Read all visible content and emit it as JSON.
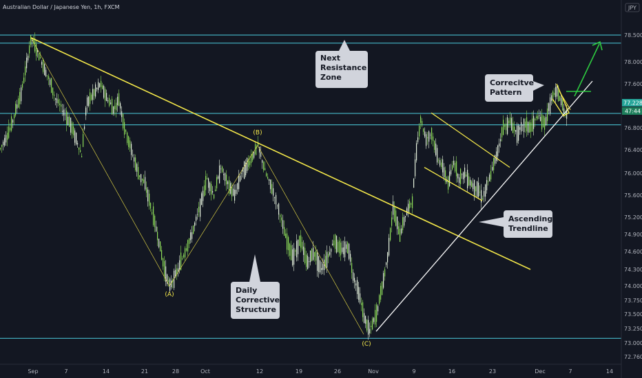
{
  "header": {
    "title": "Australian Dollar / Japanese Yen, 1h, FXCM"
  },
  "chart_data": {
    "type": "candlestick",
    "title": "Australian Dollar / Japanese Yen, 1h, FXCM",
    "currency": "JPY",
    "y_ticks": [
      "78.500",
      "78.000",
      "77.600",
      "77.200",
      "76.800",
      "76.400",
      "76.000",
      "75.600",
      "75.200",
      "74.900",
      "74.600",
      "74.300",
      "74.000",
      "73.750",
      "73.500",
      "73.250",
      "73.000",
      "72.760"
    ],
    "x_ticks": [
      "Sep",
      "7",
      "14",
      "21",
      "28",
      "Oct",
      "12",
      "19",
      "26",
      "Nov",
      "9",
      "16",
      "23",
      "Dec",
      "7",
      "14"
    ],
    "ylim": [
      72.6,
      78.8
    ],
    "last_price": "77.228",
    "countdown": "47:44",
    "price_path": [
      [
        0,
        76.42
      ],
      [
        15,
        76.8
      ],
      [
        30,
        77.4
      ],
      [
        45,
        78.45
      ],
      [
        60,
        78.0
      ],
      [
        70,
        77.7
      ],
      [
        80,
        77.3
      ],
      [
        90,
        77.1
      ],
      [
        100,
        76.9
      ],
      [
        110,
        76.6
      ],
      [
        118,
        76.3
      ],
      [
        125,
        77.2
      ],
      [
        135,
        77.4
      ],
      [
        145,
        77.6
      ],
      [
        155,
        77.3
      ],
      [
        165,
        77.1
      ],
      [
        172,
        77.3
      ],
      [
        180,
        76.8
      ],
      [
        190,
        76.4
      ],
      [
        200,
        76.0
      ],
      [
        210,
        75.8
      ],
      [
        218,
        75.4
      ],
      [
        228,
        74.9
      ],
      [
        238,
        74.3
      ],
      [
        246,
        74.0
      ],
      [
        258,
        74.3
      ],
      [
        268,
        74.6
      ],
      [
        278,
        74.9
      ],
      [
        290,
        75.4
      ],
      [
        300,
        75.9
      ],
      [
        310,
        75.6
      ],
      [
        320,
        76.1
      ],
      [
        330,
        75.8
      ],
      [
        340,
        75.6
      ],
      [
        350,
        76.0
      ],
      [
        362,
        76.2
      ],
      [
        374,
        76.48
      ],
      [
        385,
        76.0
      ],
      [
        395,
        75.7
      ],
      [
        405,
        75.3
      ],
      [
        415,
        74.8
      ],
      [
        425,
        74.5
      ],
      [
        435,
        74.8
      ],
      [
        445,
        74.4
      ],
      [
        455,
        74.6
      ],
      [
        465,
        74.3
      ],
      [
        475,
        74.5
      ],
      [
        485,
        74.8
      ],
      [
        495,
        74.6
      ],
      [
        505,
        74.7
      ],
      [
        512,
        74.2
      ],
      [
        520,
        73.9
      ],
      [
        528,
        73.45
      ],
      [
        536,
        73.2
      ],
      [
        546,
        73.5
      ],
      [
        556,
        74.1
      ],
      [
        563,
        74.6
      ],
      [
        570,
        75.35
      ],
      [
        580,
        74.9
      ],
      [
        590,
        75.3
      ],
      [
        598,
        75.5
      ],
      [
        604,
        76.4
      ],
      [
        610,
        76.95
      ],
      [
        618,
        76.6
      ],
      [
        626,
        76.7
      ],
      [
        634,
        76.3
      ],
      [
        642,
        76.1
      ],
      [
        650,
        75.8
      ],
      [
        658,
        76.2
      ],
      [
        666,
        75.9
      ],
      [
        674,
        76.0
      ],
      [
        684,
        75.8
      ],
      [
        694,
        75.7
      ],
      [
        700,
        75.55
      ],
      [
        710,
        75.9
      ],
      [
        720,
        76.3
      ],
      [
        730,
        76.8
      ],
      [
        740,
        76.9
      ],
      [
        750,
        76.7
      ],
      [
        760,
        76.85
      ],
      [
        770,
        76.8
      ],
      [
        780,
        77.0
      ],
      [
        790,
        76.85
      ],
      [
        800,
        77.3
      ],
      [
        808,
        77.45
      ],
      [
        815,
        77.2
      ],
      [
        820,
        77.05
      ]
    ],
    "horizontal_levels": [
      78.5,
      78.35,
      77.04,
      76.85,
      73.08
    ],
    "trendlines": [
      {
        "name": "descending-resistance",
        "from": [
          45,
          78.45
        ],
        "to": [
          770,
          74.3
        ]
      },
      {
        "name": "ascending-trendline",
        "from": [
          546,
          73.2
        ],
        "to": [
          860,
          77.65
        ]
      },
      {
        "name": "channel-upper",
        "from": [
          626,
          77.05
        ],
        "to": [
          740,
          76.1
        ]
      },
      {
        "name": "channel-lower",
        "from": [
          616,
          76.1
        ],
        "to": [
          700,
          75.5
        ]
      }
    ],
    "wave_lines": [
      [
        45,
        78.45
      ],
      [
        246,
        74.0
      ],
      [
        374,
        76.48
      ],
      [
        528,
        73.15
      ]
    ],
    "wave_labels": [
      {
        "text": "(A)",
        "x": 246,
        "y": 73.82
      },
      {
        "text": "(B)",
        "x": 374,
        "y": 76.68
      },
      {
        "text": "(C)",
        "x": 532,
        "y": 72.95
      }
    ],
    "annotations": [
      {
        "text": [
          "Next",
          "Resistance",
          "Zone"
        ]
      },
      {
        "text": [
          "Correcitve",
          "Pattern"
        ]
      },
      {
        "text": [
          "Ascending",
          "Trendline"
        ]
      },
      {
        "text": [
          "Daily",
          "Corrective",
          "Structure"
        ]
      }
    ]
  }
}
